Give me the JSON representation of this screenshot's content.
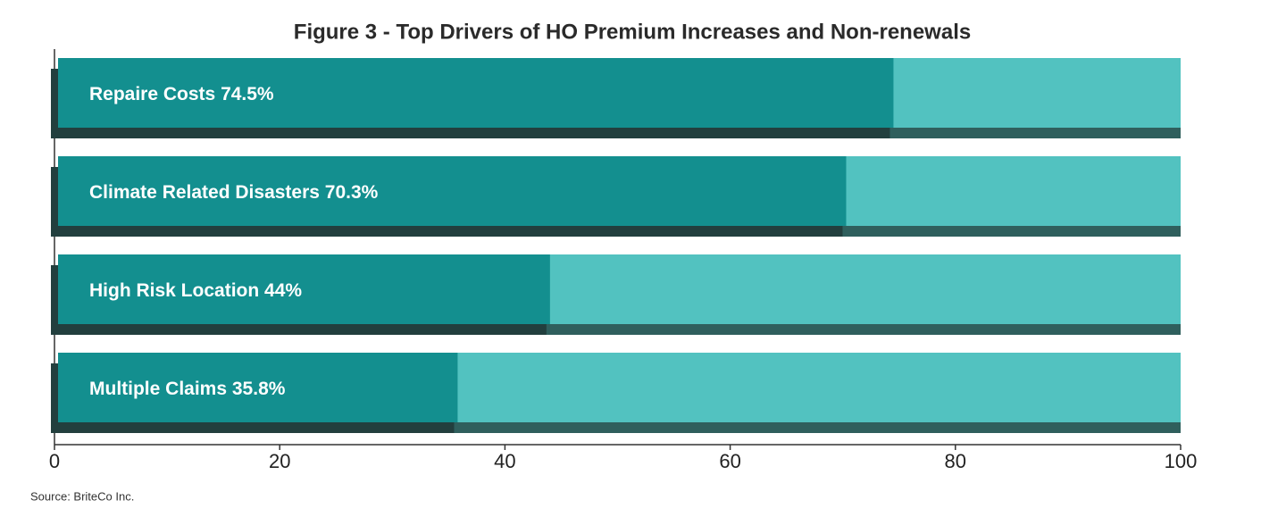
{
  "chart_data": {
    "type": "hbar",
    "title": "Figure 3 - Top Drivers of HO Premium Increases and Non-renewals",
    "categories": [
      "Repaire Costs",
      "Climate Related Disasters",
      "High Risk Location",
      "Multiple Claims"
    ],
    "values": [
      74.5,
      70.3,
      44,
      35.8
    ],
    "value_labels": [
      "74.5%",
      "70.3%",
      "44%",
      "35.8%"
    ],
    "color": "#138f8f",
    "track_color": "#52c2c0",
    "xlim": [
      0,
      100
    ],
    "xticks": [
      0,
      20,
      40,
      60,
      80,
      100
    ],
    "source": "Source: BriteCo Inc."
  }
}
